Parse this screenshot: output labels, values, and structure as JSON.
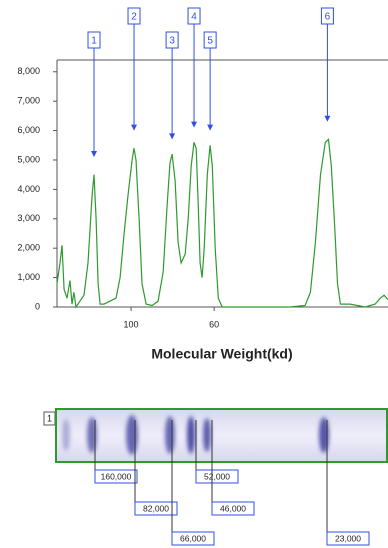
{
  "chart_data": {
    "type": "line",
    "x_label": "Molecular Weight(kd)",
    "log_x": true,
    "xlim": [
      157.7,
      20.6
    ],
    "xticks": [
      100,
      60
    ],
    "ylim": [
      0,
      8400
    ],
    "yticks": [
      0,
      {
        "value": 1000,
        "label": "1,000"
      },
      {
        "value": 2000,
        "label": "2,000"
      },
      {
        "value": 3000,
        "label": "3,000"
      },
      {
        "value": 4000,
        "label": "4,000"
      },
      {
        "value": 5000,
        "label": "5,000"
      },
      {
        "value": 6000,
        "label": "6,000"
      },
      {
        "value": 7000,
        "label": "7,000"
      },
      {
        "value": 8000,
        "label": "8,000"
      }
    ],
    "series": [
      {
        "color": "#2e9a2e",
        "x": [
          157.7,
          154.8,
          152.9,
          151.0,
          148.3,
          145.6,
          143.8,
          142.1,
          140.3,
          136.9,
          133.6,
          130.3,
          127.1,
          125.6,
          124.0,
          122.5,
          121.0,
          118.1,
          113.8,
          109.7,
          107.0,
          104.4,
          101.9,
          99.4,
          98.2,
          97.0,
          95.2,
          93.5,
          91.2,
          87.9,
          84.7,
          82.1,
          80.1,
          78.7,
          77.7,
          76.3,
          74.9,
          73.5,
          71.7,
          70.4,
          69.1,
          67.9,
          67.0,
          66.2,
          65.4,
          64.6,
          63.8,
          62.6,
          61.5,
          60.7,
          59.6,
          58.5,
          57.1,
          51.1,
          46.6,
          42.5,
          37.6,
          34.3,
          33.2,
          32.2,
          31.2,
          30.3,
          29.7,
          29.2,
          28.6,
          28.1,
          27.6,
          26.0,
          23.7,
          22.3,
          21.6,
          21.1,
          20.6
        ],
        "values": [
          800,
          1500,
          2100,
          600,
          300,
          900,
          100,
          500,
          0,
          200,
          400,
          1500,
          3800,
          4500,
          3000,
          800,
          100,
          100,
          200,
          300,
          1000,
          2500,
          3800,
          5000,
          5400,
          5000,
          3000,
          800,
          100,
          50,
          200,
          1200,
          3500,
          4900,
          5200,
          4300,
          2200,
          1500,
          1800,
          3000,
          4800,
          5600,
          5400,
          3500,
          1500,
          1000,
          2000,
          4500,
          5500,
          4800,
          2000,
          300,
          0,
          0,
          0,
          0,
          0,
          50,
          500,
          2200,
          4500,
          5600,
          5700,
          4800,
          2800,
          800,
          100,
          100,
          0,
          100,
          300,
          400,
          250
        ]
      }
    ],
    "annotations": [
      {
        "label": "1",
        "x": 125.6,
        "y": 5100
      },
      {
        "label": "2",
        "x": 98.2,
        "y": 6000
      },
      {
        "label": "3",
        "x": 77.7,
        "y": 5700
      },
      {
        "label": "4",
        "x": 67.9,
        "y": 6100
      },
      {
        "label": "5",
        "x": 61.5,
        "y": 6000
      },
      {
        "label": "6",
        "x": 29.9,
        "y": 6300
      }
    ]
  },
  "gel": {
    "lane": "1",
    "markers": [
      "160,000",
      "82,000",
      "66,000",
      "52,000",
      "46,000",
      "23,000"
    ]
  }
}
